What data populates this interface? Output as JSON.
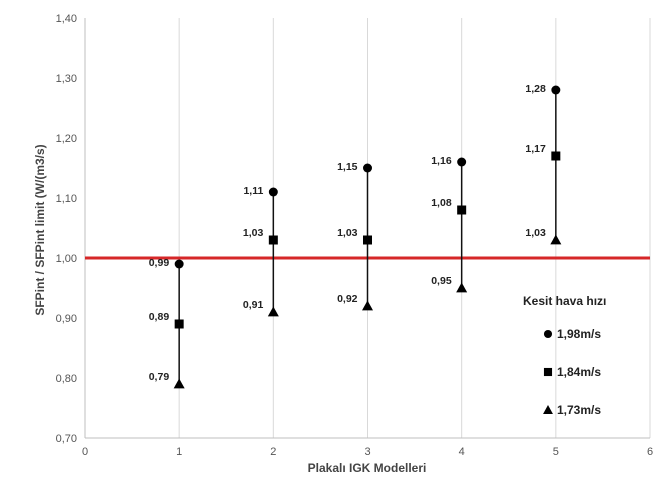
{
  "chart_data": {
    "type": "scatter",
    "xlabel": "Plakalı IGK Modelleri",
    "ylabel": "SFPint / SFPint limit (W/(m3/s)",
    "xlim": [
      0,
      6
    ],
    "ylim": [
      0.7,
      1.4
    ],
    "x_ticks": [
      "0",
      "1",
      "2",
      "3",
      "4",
      "5",
      "6"
    ],
    "y_ticks": [
      "0,70",
      "0,80",
      "0,90",
      "1,00",
      "1,10",
      "1,20",
      "1,30",
      "1,40"
    ],
    "grid": "vertical",
    "legend_title": "Kesit hava hızı",
    "legend_position": "bottom-right",
    "reference_line": {
      "y": 1.0,
      "color": "#d62728"
    },
    "x": [
      1,
      2,
      3,
      4,
      5
    ],
    "series": [
      {
        "name": "1,98m/s",
        "marker": "circle",
        "values": [
          0.99,
          1.11,
          1.15,
          1.16,
          1.28
        ],
        "labels": [
          "0,99",
          "1,11",
          "1,15",
          "1,16",
          "1,28"
        ]
      },
      {
        "name": "1,84m/s",
        "marker": "square",
        "values": [
          0.89,
          1.03,
          1.03,
          1.08,
          1.17
        ],
        "labels": [
          "0,89",
          "1,03",
          "1,03",
          "1,08",
          "1,17"
        ]
      },
      {
        "name": "1,73m/s",
        "marker": "triangle",
        "values": [
          0.79,
          0.91,
          0.92,
          0.95,
          1.03
        ],
        "labels": [
          "0,79",
          "0,91",
          "0,92",
          "0,95",
          "1,03"
        ]
      }
    ]
  }
}
